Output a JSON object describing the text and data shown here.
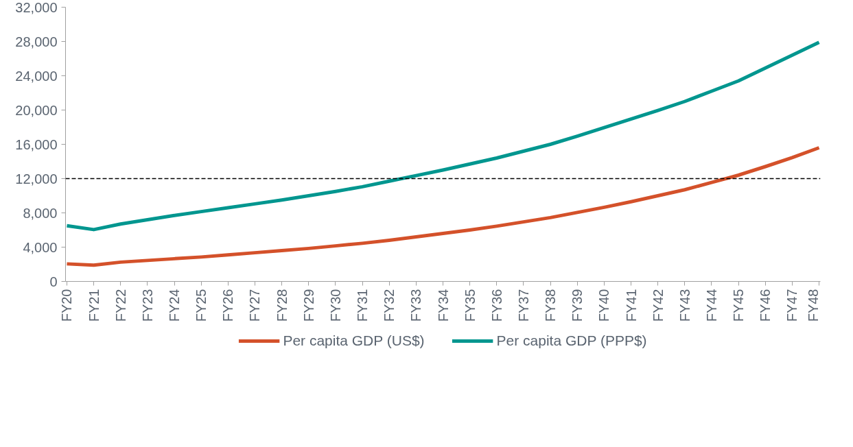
{
  "chart_data": {
    "type": "line",
    "categories": [
      "FY20",
      "FY21",
      "FY22",
      "FY23",
      "FY24",
      "FY25",
      "FY26",
      "FY27",
      "FY28",
      "FY29",
      "FY30",
      "FY31",
      "FY32",
      "FY33",
      "FY34",
      "FY35",
      "FY36",
      "FY37",
      "FY38",
      "FY39",
      "FY40",
      "FY41",
      "FY42",
      "FY43",
      "FY44",
      "FY45",
      "FY46",
      "FY47",
      "FY48"
    ],
    "series": [
      {
        "name": "Per capita GDP (US$)",
        "color": "#d4512a",
        "values": [
          2050,
          1900,
          2250,
          2450,
          2650,
          2850,
          3100,
          3350,
          3600,
          3850,
          4150,
          4450,
          4800,
          5200,
          5600,
          6000,
          6450,
          6950,
          7450,
          8050,
          8650,
          9300,
          10000,
          10700,
          11550,
          12400,
          13400,
          14450,
          15600
        ]
      },
      {
        "name": "Per capita GDP (PPP$)",
        "color": "#00968f",
        "values": [
          6500,
          6050,
          6700,
          7200,
          7700,
          8150,
          8600,
          9050,
          9500,
          10000,
          10500,
          11050,
          11700,
          12350,
          13000,
          13700,
          14400,
          15200,
          16000,
          16950,
          17950,
          18950,
          19950,
          21000,
          22200,
          23400,
          24900,
          26400,
          27900
        ]
      }
    ],
    "ylim": [
      0,
      32000
    ],
    "yticks": [
      {
        "value": 0,
        "label": "0"
      },
      {
        "value": 4000,
        "label": "4,000"
      },
      {
        "value": 8000,
        "label": "8,000"
      },
      {
        "value": 12000,
        "label": "12,000"
      },
      {
        "value": 16000,
        "label": "16,000"
      },
      {
        "value": 20000,
        "label": "20,000"
      },
      {
        "value": 24000,
        "label": "24,000"
      },
      {
        "value": 28000,
        "label": "28,000"
      },
      {
        "value": 32000,
        "label": "32,000"
      }
    ],
    "ref_lines": [
      {
        "axis": "y",
        "value": 12000,
        "label": null,
        "color": "#000000",
        "line_style": "dashed"
      }
    ],
    "grid": false,
    "legend": "bottom",
    "marker": "none",
    "line_style": "solid"
  }
}
